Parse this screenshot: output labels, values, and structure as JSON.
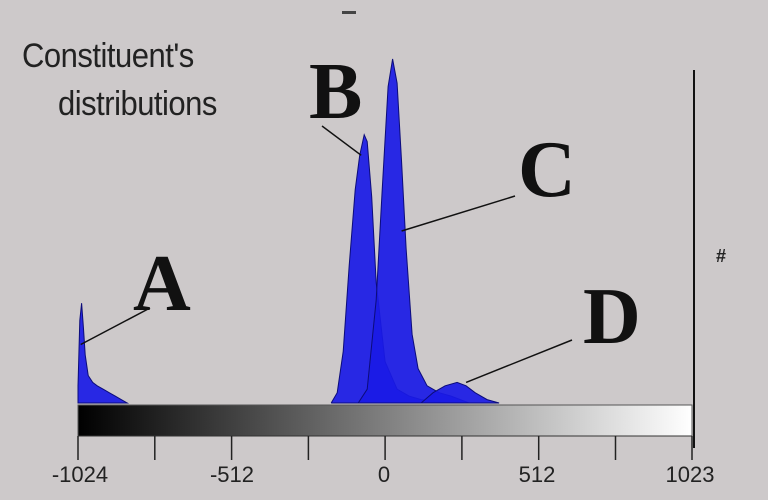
{
  "title": {
    "line1": "Constituent's",
    "line2": "distributions"
  },
  "y_axis_mark": "#",
  "chart_data": {
    "type": "area",
    "title": "Constituent's distributions",
    "xlabel": "",
    "ylabel": "#",
    "xlim": [
      -1024,
      1023
    ],
    "ylim": [
      0,
      1
    ],
    "x_ticks": [
      -1024,
      -768,
      -512,
      -256,
      0,
      256,
      512,
      768,
      1023
    ],
    "x_tick_labels": [
      "-1024",
      "-512",
      "0",
      "512",
      "1023"
    ],
    "grid": false,
    "colorbar": {
      "from": "#000000",
      "to": "#ffffff",
      "range": [
        -1024,
        1023
      ]
    },
    "series": [
      {
        "name": "A",
        "label_anchor": [
          -1015,
          0.17
        ],
        "x": [
          -1024,
          -1018,
          -1012,
          -1006,
          -1000,
          -990,
          -975,
          -960,
          -940,
          -920,
          -900,
          -880,
          -860
        ],
        "y": [
          0.05,
          0.24,
          0.29,
          0.22,
          0.14,
          0.08,
          0.06,
          0.05,
          0.04,
          0.03,
          0.02,
          0.01,
          0
        ]
      },
      {
        "name": "B",
        "label_anchor": [
          -80,
          0.72
        ],
        "x": [
          -180,
          -160,
          -140,
          -120,
          -100,
          -85,
          -70,
          -60,
          -45,
          -30,
          0,
          40,
          80,
          120,
          160,
          200
        ],
        "y": [
          0,
          0.03,
          0.15,
          0.4,
          0.62,
          0.72,
          0.78,
          0.76,
          0.6,
          0.35,
          0.12,
          0.04,
          0.02,
          0.01,
          0.005,
          0
        ]
      },
      {
        "name": "C",
        "label_anchor": [
          55,
          0.5
        ],
        "x": [
          -90,
          -60,
          -30,
          -10,
          10,
          25,
          40,
          55,
          70,
          90,
          110,
          140,
          180,
          220,
          280
        ],
        "y": [
          0,
          0.04,
          0.3,
          0.62,
          0.92,
          1.0,
          0.93,
          0.7,
          0.45,
          0.2,
          0.1,
          0.05,
          0.03,
          0.02,
          0
        ]
      },
      {
        "name": "D",
        "label_anchor": [
          270,
          0.06
        ],
        "x": [
          120,
          160,
          200,
          240,
          270,
          300,
          340,
          380
        ],
        "y": [
          0,
          0.03,
          0.05,
          0.06,
          0.05,
          0.03,
          0.01,
          0
        ]
      }
    ]
  }
}
